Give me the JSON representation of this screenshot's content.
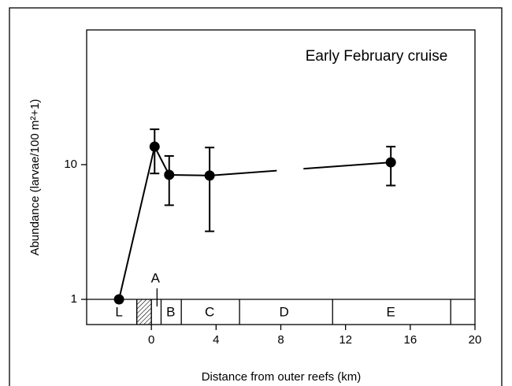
{
  "chart_data": {
    "type": "line",
    "title": "Early February cruise",
    "xlabel": "Distance from outer reefs (km)",
    "ylabel": "Abundance (larvae/100 m²+1)",
    "log_y": true,
    "xlim": [
      -4,
      20
    ],
    "xticks": [
      0,
      4,
      8,
      12,
      16,
      20
    ],
    "ylim": [
      0.65,
      100
    ],
    "yticks": [
      1,
      10
    ],
    "series": [
      {
        "color": "#000000",
        "x": [
          -2,
          0.2,
          1.1,
          3.6,
          14.8
        ],
        "values": [
          1,
          13.6,
          8.4,
          8.3,
          10.4
        ],
        "error_upper": [
          null,
          18.3,
          11.6,
          13.4,
          13.6
        ],
        "error_lower": [
          null,
          8.6,
          5.0,
          3.2,
          7.0
        ]
      }
    ],
    "line_gap": [
      7.75,
      9.4
    ],
    "zone_boundaries": [
      -0.9,
      0,
      0.6,
      1.85,
      5.45,
      11.2,
      18.5
    ],
    "hatched": [
      -0.9,
      0
    ],
    "zones": [
      {
        "label": "L",
        "x": -2
      },
      {
        "label": "B",
        "x": 1.2
      },
      {
        "label": "C",
        "x": 3.6
      },
      {
        "label": "D",
        "x": 8.2
      },
      {
        "label": "E",
        "x": 14.8
      }
    ],
    "marker_a": {
      "label": "A",
      "x": 0.35
    }
  }
}
